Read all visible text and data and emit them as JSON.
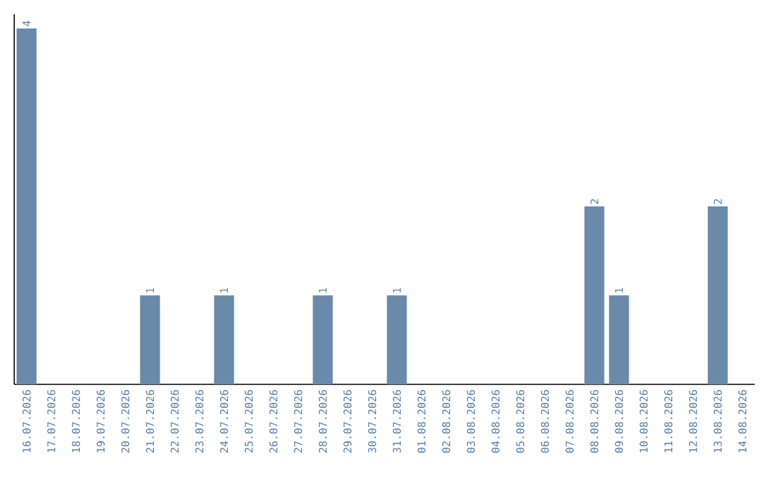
{
  "chart_data": {
    "type": "bar",
    "categories": [
      "16.07.2026",
      "17.07.2026",
      "18.07.2026",
      "19.07.2026",
      "20.07.2026",
      "21.07.2026",
      "22.07.2026",
      "23.07.2026",
      "24.07.2026",
      "25.07.2026",
      "26.07.2026",
      "27.07.2026",
      "28.07.2026",
      "29.07.2026",
      "30.07.2026",
      "31.07.2026",
      "01.08.2026",
      "02.08.2026",
      "03.08.2026",
      "04.08.2026",
      "05.08.2026",
      "06.08.2026",
      "07.08.2026",
      "08.08.2026",
      "09.08.2026",
      "10.08.2026",
      "11.08.2026",
      "12.08.2026",
      "13.08.2026",
      "14.08.2026"
    ],
    "values": [
      4,
      0,
      0,
      0,
      0,
      1,
      0,
      0,
      1,
      0,
      0,
      0,
      1,
      0,
      0,
      1,
      0,
      0,
      0,
      0,
      0,
      0,
      0,
      2,
      1,
      0,
      0,
      0,
      2,
      0
    ],
    "value_labels": [
      "4",
      null,
      null,
      null,
      null,
      "1",
      null,
      null,
      "1",
      null,
      null,
      null,
      "1",
      null,
      null,
      "1",
      null,
      null,
      null,
      null,
      null,
      null,
      null,
      "2",
      "1",
      null,
      null,
      null,
      "2",
      null
    ],
    "color": "#6a8aaa"
  }
}
